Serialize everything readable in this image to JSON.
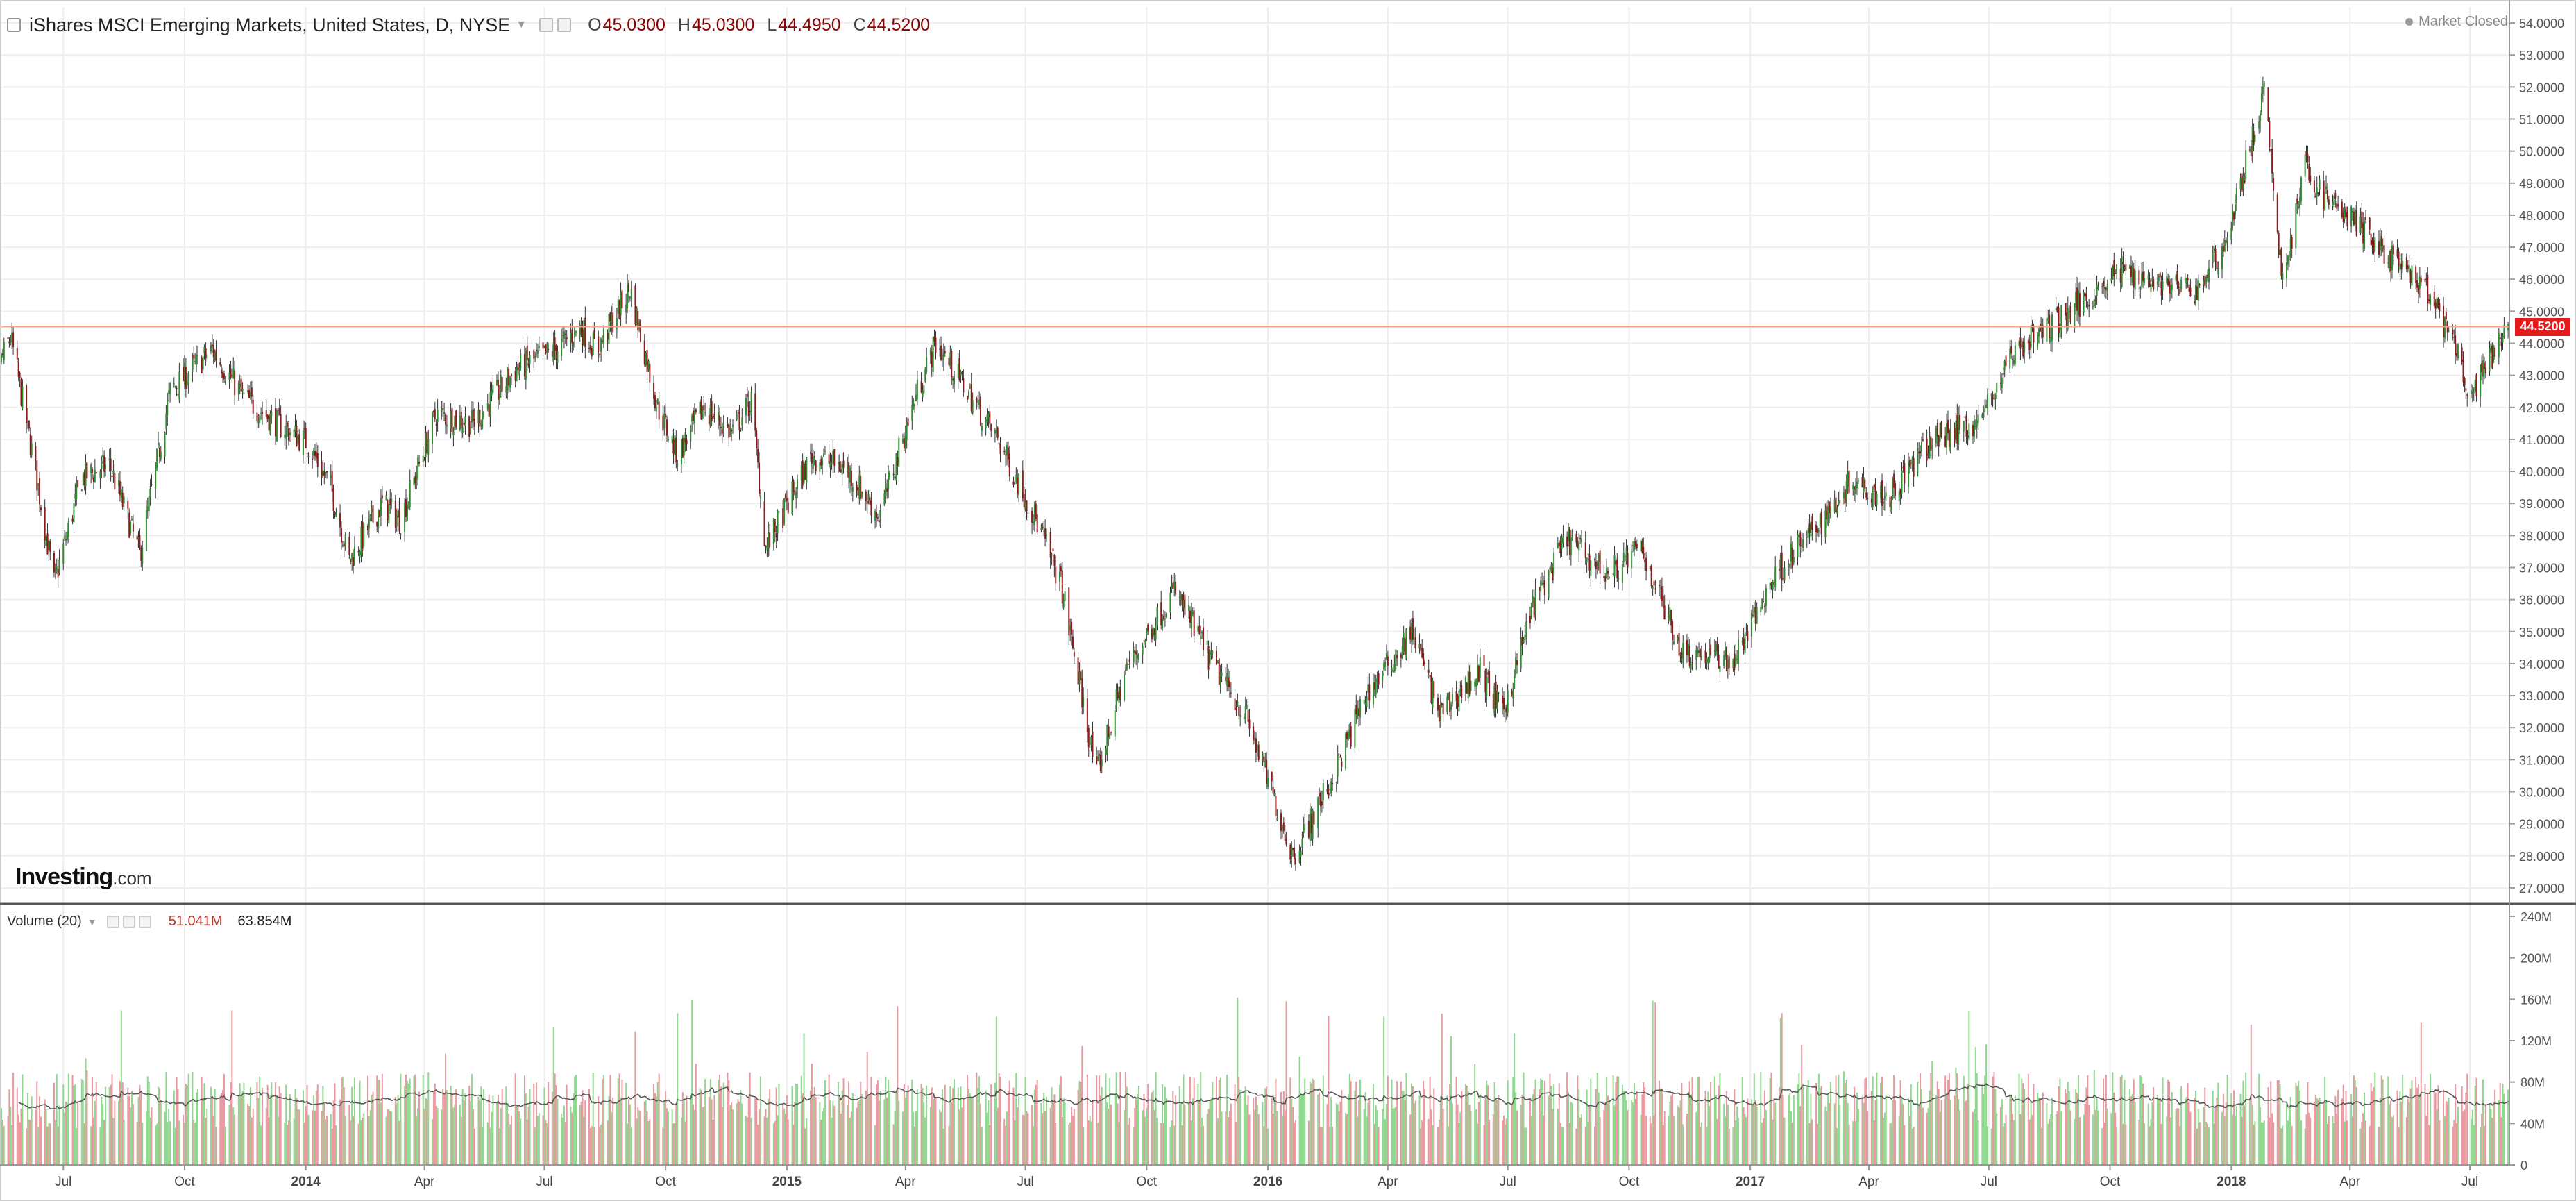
{
  "legend": {
    "title": "iShares MSCI Emerging Markets, United States, D, NYSE",
    "open_label": "O",
    "open": "45.0300",
    "high_label": "H",
    "high": "45.0300",
    "low_label": "L",
    "low": "44.4950",
    "close_label": "C",
    "close": "44.5200"
  },
  "status": "Market Closed",
  "logo": {
    "brand": "Investing",
    "suffix": ".com"
  },
  "price_tag": "44.5200",
  "volume_legend": {
    "label": "Volume (20)",
    "last": "51.041M",
    "ma": "63.854M"
  },
  "colors": {
    "up": "#2e8b2e",
    "down": "#8b1a1a",
    "vol_up": "#90d890",
    "vol_down": "#e89aa0",
    "price_line": "#f4a582",
    "ma_line": "#555555"
  },
  "chart_data": [
    {
      "type": "candlestick",
      "title": "iShares MSCI Emerging Markets, United States, D, NYSE",
      "y_axis_side": "right",
      "ylim": [
        26.5,
        54.5
      ],
      "y_ticks": [
        "54.0000",
        "53.0000",
        "52.0000",
        "51.0000",
        "50.0000",
        "49.0000",
        "48.0000",
        "47.0000",
        "46.0000",
        "45.0000",
        "44.0000",
        "43.0000",
        "42.0000",
        "41.0000",
        "40.0000",
        "39.0000",
        "38.0000",
        "37.0000",
        "36.0000",
        "35.0000",
        "34.0000",
        "33.0000",
        "32.0000",
        "31.0000",
        "30.0000",
        "29.0000",
        "28.0000",
        "27.0000"
      ],
      "x_ticks": [
        "Jul",
        "Oct",
        "2014",
        "Apr",
        "Jul",
        "Oct",
        "2015",
        "Apr",
        "Jul",
        "Oct",
        "2016",
        "Apr",
        "Jul",
        "Oct",
        "2017",
        "Apr",
        "Jul",
        "Oct",
        "2018",
        "Apr",
        "Jul"
      ],
      "x_range": [
        "2013-05",
        "2018-07"
      ],
      "grid": true,
      "last_close": 44.52,
      "approx_path": [
        [
          "2013-05-01",
          42.0
        ],
        [
          "2013-05-22",
          44.2
        ],
        [
          "2013-06-10",
          40.0
        ],
        [
          "2013-06-24",
          36.5
        ],
        [
          "2013-07-15",
          39.8
        ],
        [
          "2013-08-05",
          40.2
        ],
        [
          "2013-08-28",
          37.4
        ],
        [
          "2013-09-20",
          42.5
        ],
        [
          "2013-10-22",
          43.8
        ],
        [
          "2013-11-15",
          42.3
        ],
        [
          "2013-12-10",
          41.5
        ],
        [
          "2014-01-02",
          40.9
        ],
        [
          "2014-01-20",
          39.5
        ],
        [
          "2014-02-03",
          37.2
        ],
        [
          "2014-02-28",
          39.0
        ],
        [
          "2014-03-14",
          38.5
        ],
        [
          "2014-04-10",
          41.8
        ],
        [
          "2014-05-08",
          41.5
        ],
        [
          "2014-06-10",
          43.2
        ],
        [
          "2014-07-10",
          43.8
        ],
        [
          "2014-07-28",
          44.5
        ],
        [
          "2014-08-10",
          43.8
        ],
        [
          "2014-09-04",
          45.7
        ],
        [
          "2014-09-25",
          42.0
        ],
        [
          "2014-10-10",
          40.5
        ],
        [
          "2014-10-30",
          42.0
        ],
        [
          "2014-11-20",
          41.2
        ],
        [
          "2014-12-05",
          42.2
        ],
        [
          "2014-12-16",
          37.6
        ],
        [
          "2015-01-20",
          40.5
        ],
        [
          "2015-02-15",
          40.1
        ],
        [
          "2015-03-12",
          38.6
        ],
        [
          "2015-04-10",
          42.5
        ],
        [
          "2015-04-24",
          44.0
        ],
        [
          "2015-05-15",
          42.7
        ],
        [
          "2015-06-10",
          41.0
        ],
        [
          "2015-07-08",
          38.6
        ],
        [
          "2015-07-28",
          36.5
        ],
        [
          "2015-08-24",
          30.5
        ],
        [
          "2015-09-15",
          33.8
        ],
        [
          "2015-10-22",
          36.3
        ],
        [
          "2015-11-20",
          34.0
        ],
        [
          "2015-12-15",
          32.4
        ],
        [
          "2016-01-20",
          28.0
        ],
        [
          "2016-02-20",
          30.5
        ],
        [
          "2016-03-15",
          33.0
        ],
        [
          "2016-04-20",
          35.0
        ],
        [
          "2016-05-10",
          32.4
        ],
        [
          "2016-06-10",
          33.8
        ],
        [
          "2016-06-27",
          32.4
        ],
        [
          "2016-07-20",
          35.8
        ],
        [
          "2016-08-15",
          37.9
        ],
        [
          "2016-09-15",
          36.8
        ],
        [
          "2016-10-10",
          37.6
        ],
        [
          "2016-11-10",
          34.4
        ],
        [
          "2016-12-20",
          34.1
        ],
        [
          "2017-01-20",
          36.8
        ],
        [
          "2017-02-25",
          38.5
        ],
        [
          "2017-03-20",
          39.8
        ],
        [
          "2017-04-15",
          39.2
        ],
        [
          "2017-05-20",
          41.0
        ],
        [
          "2017-06-25",
          41.6
        ],
        [
          "2017-07-20",
          43.8
        ],
        [
          "2017-08-25",
          44.8
        ],
        [
          "2017-10-10",
          46.3
        ],
        [
          "2017-11-15",
          45.8
        ],
        [
          "2017-12-05",
          45.6
        ],
        [
          "2017-12-28",
          47.2
        ],
        [
          "2018-01-26",
          51.8
        ],
        [
          "2018-02-09",
          45.9
        ],
        [
          "2018-02-26",
          49.5
        ],
        [
          "2018-03-12",
          48.6
        ],
        [
          "2018-04-05",
          47.8
        ],
        [
          "2018-05-10",
          46.3
        ],
        [
          "2018-05-30",
          45.6
        ],
        [
          "2018-06-18",
          44.0
        ],
        [
          "2018-07-02",
          42.3
        ],
        [
          "2018-07-20",
          43.8
        ],
        [
          "2018-07-31",
          44.52
        ]
      ]
    },
    {
      "type": "bar",
      "title": "Volume (20)",
      "y_axis_side": "right",
      "ylim": [
        0,
        240
      ],
      "y_ticks": [
        "240M",
        "200M",
        "160M",
        "120M",
        "80M",
        "40M",
        "0"
      ],
      "moving_average_period": 20,
      "last_volume": "51.041M",
      "last_ma": "63.854M"
    }
  ]
}
